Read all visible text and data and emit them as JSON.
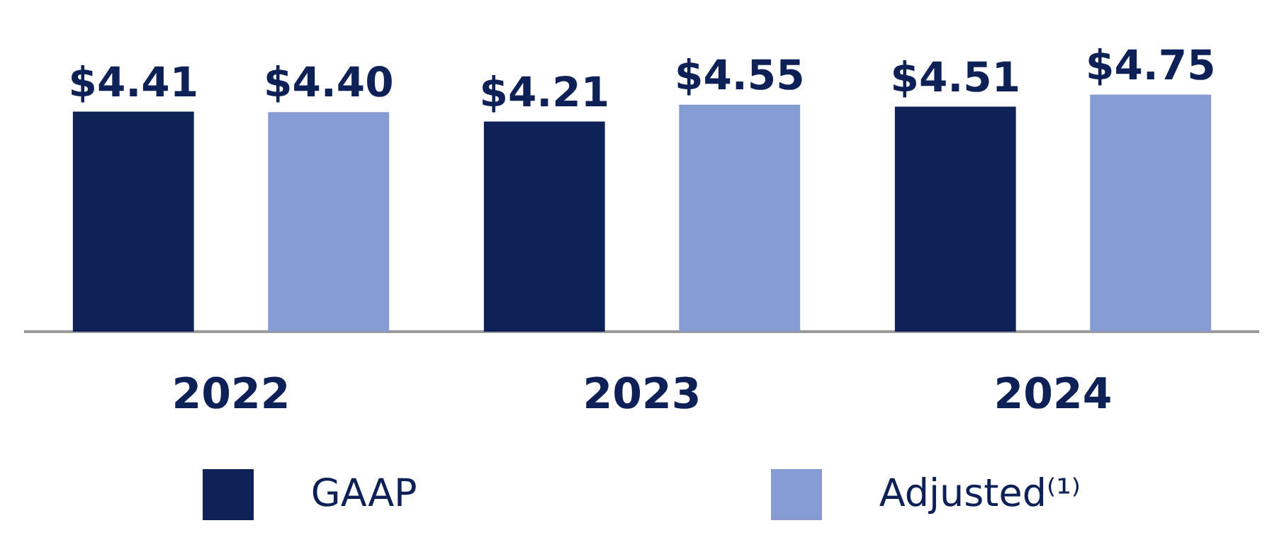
{
  "chart_data": {
    "type": "bar",
    "categories": [
      "2022",
      "2023",
      "2024"
    ],
    "series": [
      {
        "name": "GAAP",
        "color": "#0e2157",
        "values": [
          4.41,
          4.21,
          4.51
        ],
        "value_labels": [
          "$4.41",
          "$4.21",
          "$4.51"
        ]
      },
      {
        "name": "Adjusted⁽¹⁾",
        "color": "#859bd2",
        "values": [
          4.4,
          4.55,
          4.75
        ],
        "value_labels": [
          "$4.40",
          "$4.55",
          "$4.75"
        ]
      }
    ],
    "legend": "bottom",
    "grid": false,
    "tick_labels": "x"
  }
}
